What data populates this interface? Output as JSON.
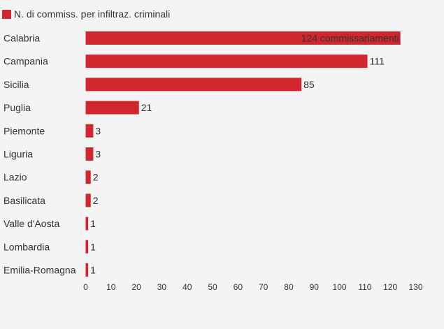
{
  "chart_data": {
    "type": "bar",
    "orientation": "horizontal",
    "categories": [
      "Calabria",
      "Campania",
      "Sicilia",
      "Puglia",
      "Piemonte",
      "Liguria",
      "Lazio",
      "Basilicata",
      "Valle d'Aosta",
      "Lombardia",
      "Emilia-Romagna"
    ],
    "series": [
      {
        "name": "N. di commiss. per infiltraz. criminali",
        "values": [
          124,
          111,
          85,
          21,
          3,
          3,
          2,
          2,
          1,
          1,
          1
        ],
        "labels": [
          "124 commissariamenti",
          "111",
          "85",
          "21",
          "3",
          "3",
          "2",
          "2",
          "1",
          "1",
          "1"
        ],
        "color": "#d1262e"
      }
    ],
    "xlim": [
      0,
      130
    ],
    "xticks": [
      "0",
      "10",
      "20",
      "30",
      "40",
      "50",
      "60",
      "70",
      "80",
      "90",
      "100",
      "110",
      "120",
      "130"
    ],
    "legend_position": "top-left",
    "grid": false,
    "colors": {
      "background": "#f5f4f4",
      "bar": "#d1262e",
      "text": "#333333"
    }
  }
}
